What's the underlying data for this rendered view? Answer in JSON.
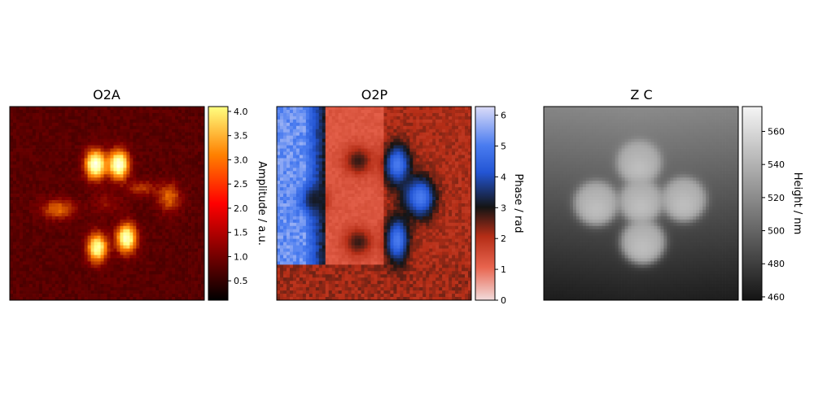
{
  "chart_data": [
    {
      "type": "heatmap",
      "title": "O2A",
      "colormap": "afmhot",
      "colorbar": {
        "label": "Amplitude / a.u.",
        "range": [
          0.1,
          4.1
        ],
        "ticks": [
          "0.5",
          "1.0",
          "1.5",
          "2.0",
          "2.5",
          "3.0",
          "3.5",
          "4.0"
        ]
      },
      "pixel_grid": [
        60,
        60
      ],
      "features": "four-lobed cross; bright lobes top and bottom (up to ~4.0), weaker lobes left and right (~2.0), background ~0.8"
    },
    {
      "type": "heatmap",
      "title": "O2P",
      "colormap": "diverging red-black-blue (light red at 0, dark at ~3, light blue at 2π)",
      "colorbar": {
        "label": "Phase / rad",
        "range": [
          0,
          6.28
        ],
        "ticks": [
          "0",
          "1",
          "2",
          "3",
          "4",
          "5",
          "6"
        ]
      },
      "pixel_grid": [
        60,
        60
      ],
      "features": "four dark disks on red background; blue crescents on right side of lobes; light-blue band on left edge"
    },
    {
      "type": "heatmap",
      "title": "Z C",
      "colormap": "gray",
      "colorbar": {
        "label": "Height / nm",
        "range": [
          458,
          575
        ],
        "ticks": [
          "460",
          "480",
          "500",
          "520",
          "540",
          "560"
        ]
      },
      "pixel_grid": [
        60,
        60
      ],
      "features": "plus-shaped structure of five disks (~525–545 nm) on background decreasing from ~520 nm at top to ~465 nm at bottom"
    }
  ]
}
